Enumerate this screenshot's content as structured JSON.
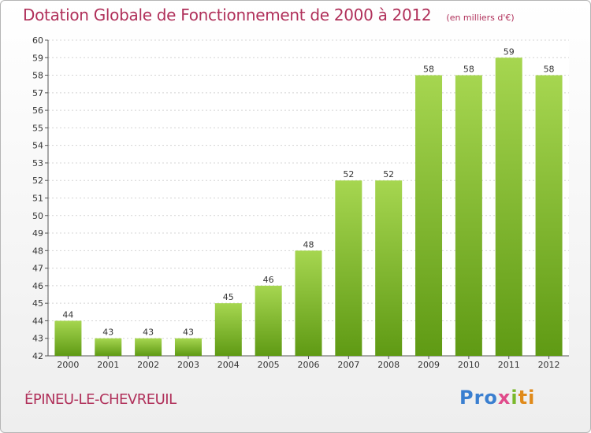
{
  "chart_data": {
    "type": "bar",
    "title": "Dotation Globale de Fonctionnement de 2000 à 2012",
    "subtitle": "(en milliers d'€)",
    "categories": [
      "2000",
      "2001",
      "2002",
      "2003",
      "2004",
      "2005",
      "2006",
      "2007",
      "2008",
      "2009",
      "2010",
      "2011",
      "2012"
    ],
    "values": [
      44,
      43,
      43,
      43,
      45,
      46,
      48,
      52,
      52,
      58,
      58,
      59,
      58
    ],
    "ylim": [
      42,
      60
    ],
    "yticks": [
      42,
      43,
      44,
      45,
      46,
      47,
      48,
      49,
      50,
      51,
      52,
      53,
      54,
      55,
      56,
      57,
      58,
      59,
      60
    ],
    "grid": true,
    "bar_color": "#7ab82c"
  },
  "footer": {
    "commune": "ÉPINEU-LE-CHEVREUIL",
    "logo_parts": [
      "Pro",
      "x",
      "i",
      "ti"
    ]
  }
}
